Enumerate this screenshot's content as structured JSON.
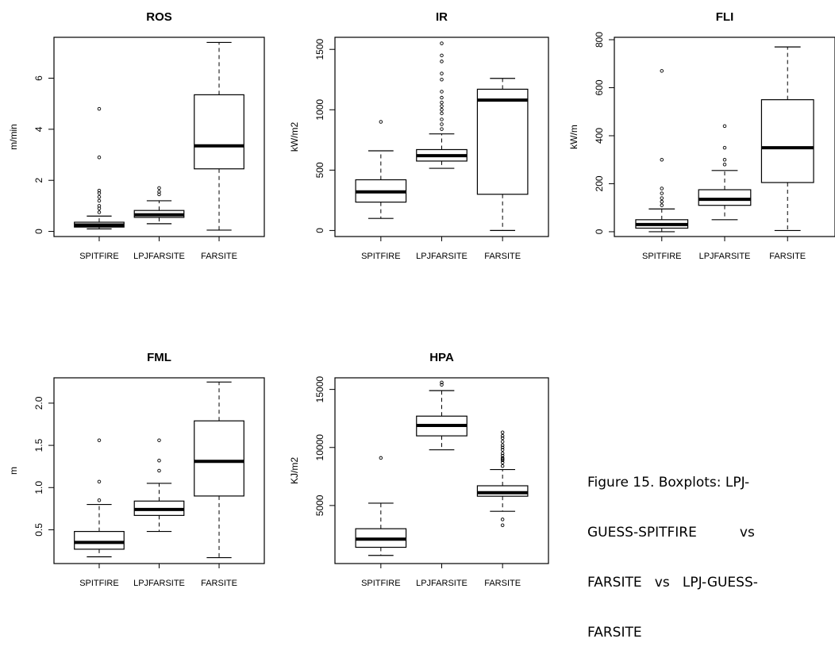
{
  "chart_data": [
    {
      "type": "box",
      "title": "ROS",
      "ylabel": "m/min",
      "categories": [
        "SPITFIRE",
        "LPJFARSITE",
        "FARSITE"
      ],
      "ylim": [
        -0.2,
        7.6
      ],
      "yticks": [
        0,
        2,
        4,
        6
      ],
      "boxes": [
        {
          "whisker_low": 0.1,
          "q1": 0.17,
          "median": 0.25,
          "q3": 0.36,
          "whisker_high": 0.6,
          "outliers": [
            0.75,
            0.9,
            1.0,
            1.2,
            1.35,
            1.5,
            1.6,
            2.9,
            4.8
          ]
        },
        {
          "whisker_low": 0.3,
          "q1": 0.55,
          "median": 0.65,
          "q3": 0.82,
          "whisker_high": 1.2,
          "outliers": [
            1.45,
            1.55,
            1.7
          ]
        },
        {
          "whisker_low": 0.05,
          "q1": 2.45,
          "median": 3.35,
          "q3": 5.35,
          "whisker_high": 7.4,
          "outliers": []
        }
      ]
    },
    {
      "type": "box",
      "title": "IR",
      "ylabel": "kW/m2",
      "categories": [
        "SPITFIRE",
        "LPJFARSITE",
        "FARSITE"
      ],
      "ylim": [
        -50,
        1600
      ],
      "yticks": [
        0,
        500,
        1000,
        1500
      ],
      "boxes": [
        {
          "whisker_low": 100,
          "q1": 235,
          "median": 320,
          "q3": 420,
          "whisker_high": 660,
          "outliers": [
            900
          ]
        },
        {
          "whisker_low": 515,
          "q1": 575,
          "median": 620,
          "q3": 670,
          "whisker_high": 800,
          "outliers": [
            840,
            880,
            920,
            970,
            1000,
            1030,
            1060,
            1100,
            1150,
            1250,
            1300,
            1400,
            1450,
            1550
          ]
        },
        {
          "whisker_low": 0,
          "q1": 300,
          "median": 1080,
          "q3": 1170,
          "whisker_high": 1260,
          "outliers": []
        }
      ]
    },
    {
      "type": "box",
      "title": "FLI",
      "ylabel": "kW/m",
      "categories": [
        "SPITFIRE",
        "LPJFARSITE",
        "FARSITE"
      ],
      "ylim": [
        -20,
        810
      ],
      "yticks": [
        0,
        200,
        400,
        600,
        800
      ],
      "boxes": [
        {
          "whisker_low": 0,
          "q1": 15,
          "median": 30,
          "q3": 50,
          "whisker_high": 95,
          "outliers": [
            110,
            125,
            140,
            160,
            180,
            300,
            670
          ]
        },
        {
          "whisker_low": 50,
          "q1": 110,
          "median": 135,
          "q3": 175,
          "whisker_high": 255,
          "outliers": [
            280,
            300,
            350,
            440
          ]
        },
        {
          "whisker_low": 5,
          "q1": 205,
          "median": 350,
          "q3": 550,
          "whisker_high": 770,
          "outliers": []
        }
      ]
    },
    {
      "type": "box",
      "title": "FML",
      "ylabel": "m",
      "categories": [
        "SPITFIRE",
        "LPJFARSITE",
        "FARSITE"
      ],
      "ylim": [
        0.1,
        2.3
      ],
      "yticks": [
        0.5,
        1.0,
        1.5,
        2.0
      ],
      "yticklabels": [
        "0.5",
        "1.0",
        "1.5",
        "2.0"
      ],
      "boxes": [
        {
          "whisker_low": 0.18,
          "q1": 0.27,
          "median": 0.35,
          "q3": 0.48,
          "whisker_high": 0.8,
          "outliers": [
            0.85,
            1.07,
            1.56
          ]
        },
        {
          "whisker_low": 0.48,
          "q1": 0.67,
          "median": 0.74,
          "q3": 0.84,
          "whisker_high": 1.05,
          "outliers": [
            1.2,
            1.32,
            1.56
          ]
        },
        {
          "whisker_low": 0.17,
          "q1": 0.9,
          "median": 1.31,
          "q3": 1.79,
          "whisker_high": 2.25,
          "outliers": []
        }
      ]
    },
    {
      "type": "box",
      "title": "HPA",
      "ylabel": "KJ/m2",
      "categories": [
        "SPITFIRE",
        "LPJFARSITE",
        "FARSITE"
      ],
      "ylim": [
        0,
        16000
      ],
      "yticks": [
        5000,
        10000,
        15000
      ],
      "boxes": [
        {
          "whisker_low": 700,
          "q1": 1400,
          "median": 2100,
          "q3": 3000,
          "whisker_high": 5200,
          "outliers": [
            9100
          ]
        },
        {
          "whisker_low": 9800,
          "q1": 11000,
          "median": 11900,
          "q3": 12700,
          "whisker_high": 14900,
          "outliers": [
            15400,
            15600
          ]
        },
        {
          "whisker_low": 4500,
          "q1": 5800,
          "median": 6100,
          "q3": 6700,
          "whisker_high": 8100,
          "outliers": [
            3300,
            3800,
            8400,
            8700,
            8900,
            9000,
            9100,
            9300,
            9500,
            9800,
            10000,
            10200,
            10500,
            10800,
            11000,
            11300
          ]
        }
      ]
    }
  ],
  "caption": {
    "lines": [
      "Figure 15. Boxplots: LPJ-",
      "GUESS-SPITFIRE          vs",
      "FARSITE   vs   LPJ-GUESS-",
      "FARSITE"
    ]
  }
}
